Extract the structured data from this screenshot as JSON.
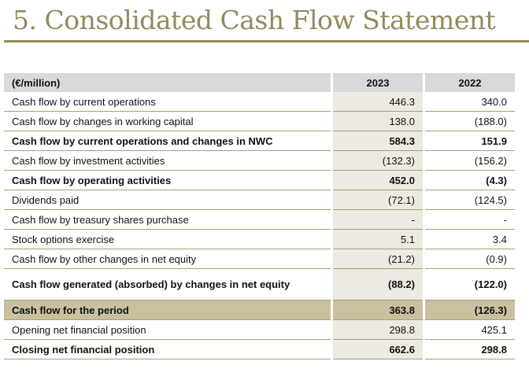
{
  "title": "5. Consolidated Cash Flow Statement",
  "table": {
    "header": {
      "label": "(€/million)",
      "y2023": "2023",
      "y2022": "2022"
    },
    "rows": [
      {
        "label": "Cash flow by current operations",
        "v2023": "446.3",
        "v2022": "340.0",
        "style": ""
      },
      {
        "label": "Cash flow by changes in working capital",
        "v2023": "138.0",
        "v2022": "(188.0)",
        "style": ""
      },
      {
        "label": "Cash flow by current operations and changes in NWC",
        "v2023": "584.3",
        "v2022": "151.9",
        "style": "bold"
      },
      {
        "label": "Cash flow by investment activities",
        "v2023": "(132.3)",
        "v2022": "(156.2)",
        "style": ""
      },
      {
        "label": "Cash flow by operating activities",
        "v2023": "452.0",
        "v2022": "(4.3)",
        "style": "bold"
      },
      {
        "label": "Dividends paid",
        "v2023": "(72.1)",
        "v2022": "(124.5)",
        "style": ""
      },
      {
        "label": "Cash flow by treasury shares purchase",
        "v2023": "-",
        "v2022": "-",
        "style": ""
      },
      {
        "label": "Stock options exercise",
        "v2023": "5.1",
        "v2022": "3.4",
        "style": ""
      },
      {
        "label": "Cash flow by other changes in net equity",
        "v2023": "(21.2)",
        "v2022": "(0.9)",
        "style": ""
      },
      {
        "label": "Cash flow generated (absorbed) by changes in net equity",
        "v2023": "(88.2)",
        "v2022": "(122.0)",
        "style": "bold tall"
      },
      {
        "label": "Cash flow for the period",
        "v2023": "363.8",
        "v2022": "(126.3)",
        "style": "hl"
      },
      {
        "label": "Opening net financial position",
        "v2023": "298.8",
        "v2022": "425.1",
        "style": ""
      },
      {
        "label": "Closing net financial position",
        "v2023": "662.6",
        "v2022": "298.8",
        "style": "bold"
      }
    ]
  }
}
